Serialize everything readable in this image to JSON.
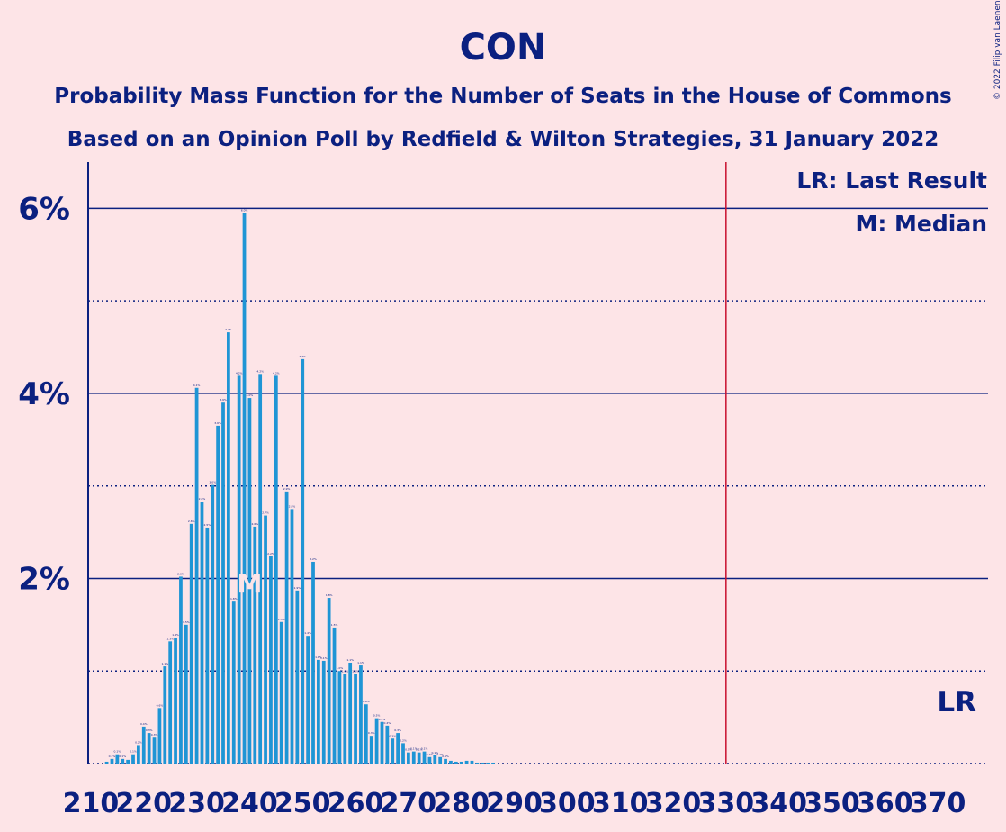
{
  "chart_data": {
    "type": "bar",
    "title": "CON",
    "subtitle": "Probability Mass Function for the Number of Seats in the House of Commons",
    "subtitle2": "Based on an Opinion Poll by Redfield & Wilton Strategies, 31 January 2022",
    "copyright": "© 2022 Filip van Laenen",
    "x_start": 210,
    "x_end": 372,
    "xtick_labels": [
      "210",
      "220",
      "230",
      "240",
      "250",
      "260",
      "270",
      "280",
      "290",
      "300",
      "310",
      "320",
      "330",
      "340",
      "350",
      "360",
      "370"
    ],
    "ytick_labels": [
      "2%",
      "4%",
      "6%"
    ],
    "ylim": [
      0,
      6.5
    ],
    "solid_gridlines": [
      2,
      4,
      6
    ],
    "dotted_gridlines": [
      1,
      3,
      5
    ],
    "values": [
      0,
      0,
      0,
      0.02,
      0.05,
      0.1,
      0.05,
      0.04,
      0.1,
      0.2,
      0.4,
      0.33,
      0.28,
      0.6,
      1.05,
      1.32,
      1.36,
      2.02,
      1.5,
      2.59,
      4.06,
      2.83,
      2.55,
      3.01,
      3.65,
      3.9,
      4.66,
      1.75,
      4.19,
      5.95,
      3.95,
      2.56,
      4.21,
      2.68,
      2.24,
      4.19,
      1.53,
      2.94,
      2.75,
      1.87,
      4.37,
      1.38,
      2.18,
      1.12,
      1.11,
      1.79,
      1.47,
      1,
      0.97,
      1.09,
      0.97,
      1.06,
      0.64,
      0.3,
      0.49,
      0.45,
      0.41,
      0.27,
      0.33,
      0.22,
      0.12,
      0.13,
      0.12,
      0.13,
      0.07,
      0.09,
      0.07,
      0.05,
      0.03,
      0.02,
      0.02,
      0.03,
      0.03,
      0.01,
      0.01,
      0.01,
      0.01,
      0,
      0,
      0,
      0,
      0,
      0,
      0,
      0,
      0,
      0,
      0,
      0,
      0,
      0,
      0,
      0,
      0,
      0,
      0,
      0,
      0,
      0,
      0,
      0,
      0,
      0,
      0,
      0,
      0,
      0,
      0,
      0,
      0,
      0,
      0,
      0,
      0,
      0,
      0,
      0,
      0,
      0,
      0,
      0,
      0,
      0,
      0,
      0,
      0,
      0,
      0,
      0,
      0,
      0,
      0,
      0,
      0,
      0,
      0,
      0,
      0,
      0,
      0,
      0,
      0,
      0,
      0,
      0,
      0,
      0,
      0,
      0,
      0,
      0,
      0,
      0,
      0,
      0,
      0,
      0,
      0,
      0,
      0,
      0,
      0,
      0,
      0,
      0,
      0,
      0,
      0,
      0,
      0
    ],
    "median_seat": 240,
    "median_marker": "M",
    "last_result_seat": 330,
    "last_result_marker": "LR",
    "legend": [
      "LR: Last Result",
      "M: Median"
    ],
    "colors": {
      "bar": "#1F95D5",
      "axis": "#0B2080",
      "last_result": "#C8102E",
      "background": "#FDE4E7"
    }
  }
}
